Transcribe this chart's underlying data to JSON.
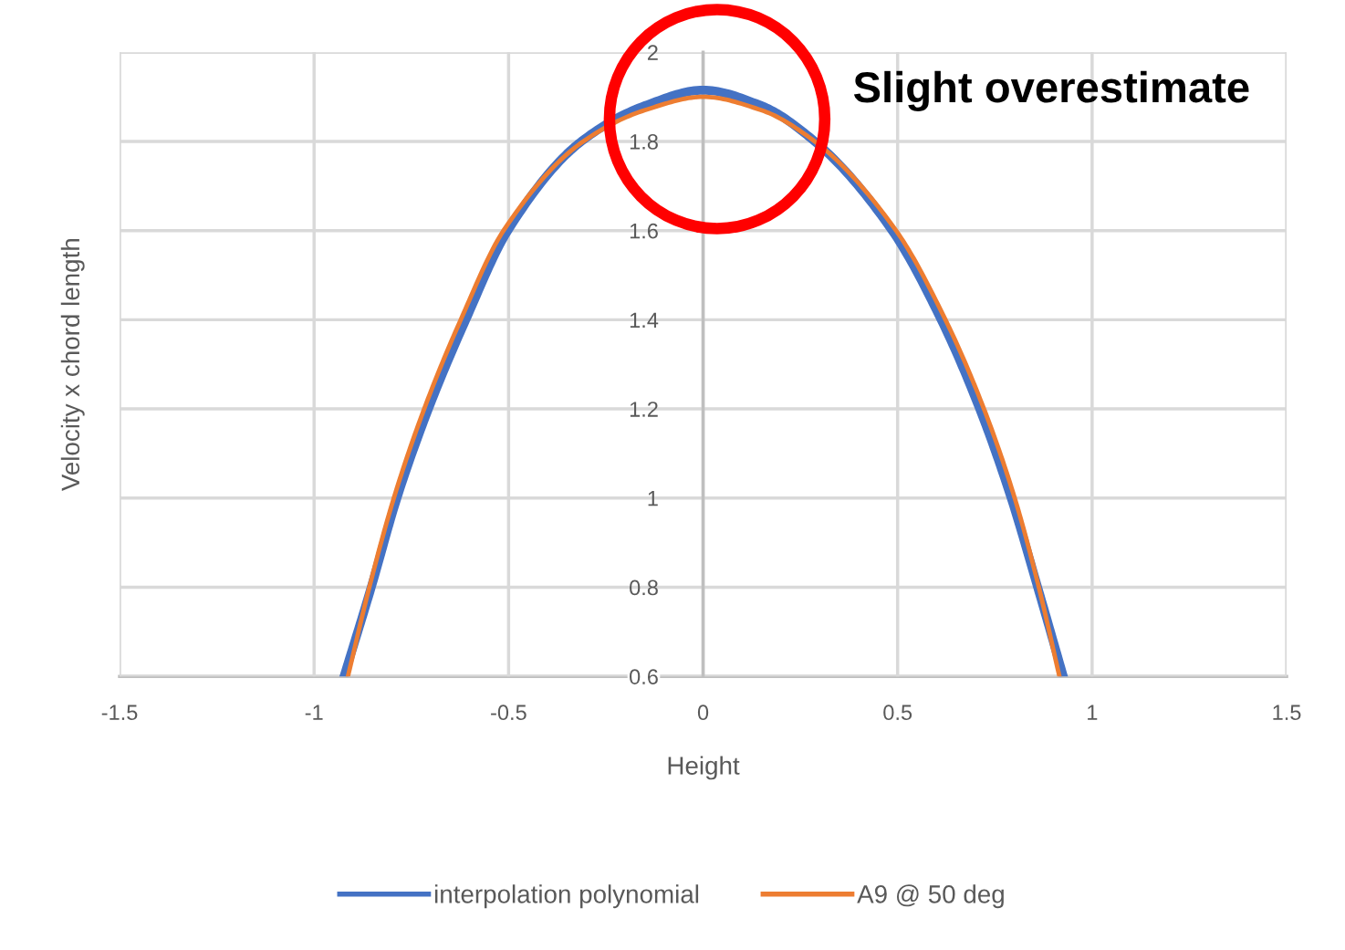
{
  "chart_data": {
    "type": "line",
    "xlabel": "Height",
    "ylabel": "Velocity x chord length",
    "annotations": [
      "Slight overestimate"
    ],
    "xlim": [
      -1.5,
      1.5
    ],
    "xticks": [
      -1.5,
      -1,
      -0.5,
      0,
      0.5,
      1,
      1.5
    ],
    "ylim": [
      0.6,
      2
    ],
    "yticks": [
      0.6,
      0.8,
      1,
      1.2,
      1.4,
      1.6,
      1.8,
      2
    ],
    "grid": true,
    "legend": "bottom",
    "marker": "none",
    "line_style": "solid",
    "series": [
      {
        "name": "interpolation polynomial",
        "color": "#4472c4",
        "x": [
          -0.923,
          -0.853,
          -0.787,
          -0.706,
          -0.61,
          -0.502,
          -0.313,
          -0.15,
          0,
          0.15,
          0.287,
          0.486,
          0.612,
          0.711,
          0.792,
          0.86,
          0.926
        ],
        "values": [
          0.6,
          0.8,
          1.0,
          1.2,
          1.4,
          1.6,
          1.8,
          1.88,
          1.915,
          1.88,
          1.8,
          1.6,
          1.4,
          1.2,
          1.0,
          0.8,
          0.6
        ]
      },
      {
        "name": "A9 @ 50 deg",
        "color": "#ed7d31",
        "x": [
          -0.913,
          -0.858,
          -0.795,
          -0.717,
          -0.623,
          -0.513,
          -0.308,
          -0.15,
          0,
          0.15,
          0.287,
          0.496,
          0.623,
          0.722,
          0.801,
          0.863,
          0.916
        ],
        "values": [
          0.6,
          0.8,
          1.0,
          1.2,
          1.4,
          1.6,
          1.8,
          1.87,
          1.9,
          1.87,
          1.8,
          1.6,
          1.4,
          1.2,
          1.0,
          0.8,
          0.6
        ]
      }
    ]
  }
}
